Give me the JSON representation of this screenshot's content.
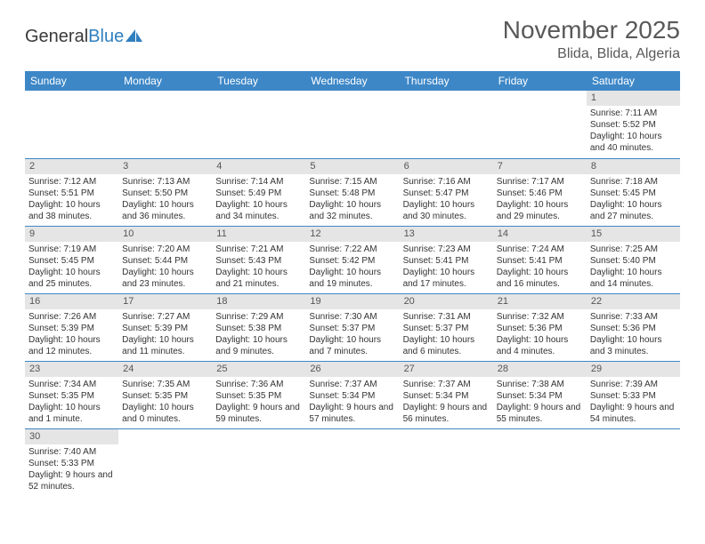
{
  "brand": {
    "part1": "General",
    "part2": "Blue"
  },
  "title": "November 2025",
  "location": "Blida, Blida, Algeria",
  "colors": {
    "header_bg": "#3d87c7",
    "header_fg": "#ffffff",
    "daynum_bg": "#e5e5e5",
    "border": "#3d87c7",
    "title_color": "#595959"
  },
  "weekdays": [
    "Sunday",
    "Monday",
    "Tuesday",
    "Wednesday",
    "Thursday",
    "Friday",
    "Saturday"
  ],
  "weeks": [
    [
      null,
      null,
      null,
      null,
      null,
      null,
      {
        "n": "1",
        "sr": "Sunrise: 7:11 AM",
        "ss": "Sunset: 5:52 PM",
        "dl": "Daylight: 10 hours and 40 minutes."
      }
    ],
    [
      {
        "n": "2",
        "sr": "Sunrise: 7:12 AM",
        "ss": "Sunset: 5:51 PM",
        "dl": "Daylight: 10 hours and 38 minutes."
      },
      {
        "n": "3",
        "sr": "Sunrise: 7:13 AM",
        "ss": "Sunset: 5:50 PM",
        "dl": "Daylight: 10 hours and 36 minutes."
      },
      {
        "n": "4",
        "sr": "Sunrise: 7:14 AM",
        "ss": "Sunset: 5:49 PM",
        "dl": "Daylight: 10 hours and 34 minutes."
      },
      {
        "n": "5",
        "sr": "Sunrise: 7:15 AM",
        "ss": "Sunset: 5:48 PM",
        "dl": "Daylight: 10 hours and 32 minutes."
      },
      {
        "n": "6",
        "sr": "Sunrise: 7:16 AM",
        "ss": "Sunset: 5:47 PM",
        "dl": "Daylight: 10 hours and 30 minutes."
      },
      {
        "n": "7",
        "sr": "Sunrise: 7:17 AM",
        "ss": "Sunset: 5:46 PM",
        "dl": "Daylight: 10 hours and 29 minutes."
      },
      {
        "n": "8",
        "sr": "Sunrise: 7:18 AM",
        "ss": "Sunset: 5:45 PM",
        "dl": "Daylight: 10 hours and 27 minutes."
      }
    ],
    [
      {
        "n": "9",
        "sr": "Sunrise: 7:19 AM",
        "ss": "Sunset: 5:45 PM",
        "dl": "Daylight: 10 hours and 25 minutes."
      },
      {
        "n": "10",
        "sr": "Sunrise: 7:20 AM",
        "ss": "Sunset: 5:44 PM",
        "dl": "Daylight: 10 hours and 23 minutes."
      },
      {
        "n": "11",
        "sr": "Sunrise: 7:21 AM",
        "ss": "Sunset: 5:43 PM",
        "dl": "Daylight: 10 hours and 21 minutes."
      },
      {
        "n": "12",
        "sr": "Sunrise: 7:22 AM",
        "ss": "Sunset: 5:42 PM",
        "dl": "Daylight: 10 hours and 19 minutes."
      },
      {
        "n": "13",
        "sr": "Sunrise: 7:23 AM",
        "ss": "Sunset: 5:41 PM",
        "dl": "Daylight: 10 hours and 17 minutes."
      },
      {
        "n": "14",
        "sr": "Sunrise: 7:24 AM",
        "ss": "Sunset: 5:41 PM",
        "dl": "Daylight: 10 hours and 16 minutes."
      },
      {
        "n": "15",
        "sr": "Sunrise: 7:25 AM",
        "ss": "Sunset: 5:40 PM",
        "dl": "Daylight: 10 hours and 14 minutes."
      }
    ],
    [
      {
        "n": "16",
        "sr": "Sunrise: 7:26 AM",
        "ss": "Sunset: 5:39 PM",
        "dl": "Daylight: 10 hours and 12 minutes."
      },
      {
        "n": "17",
        "sr": "Sunrise: 7:27 AM",
        "ss": "Sunset: 5:39 PM",
        "dl": "Daylight: 10 hours and 11 minutes."
      },
      {
        "n": "18",
        "sr": "Sunrise: 7:29 AM",
        "ss": "Sunset: 5:38 PM",
        "dl": "Daylight: 10 hours and 9 minutes."
      },
      {
        "n": "19",
        "sr": "Sunrise: 7:30 AM",
        "ss": "Sunset: 5:37 PM",
        "dl": "Daylight: 10 hours and 7 minutes."
      },
      {
        "n": "20",
        "sr": "Sunrise: 7:31 AM",
        "ss": "Sunset: 5:37 PM",
        "dl": "Daylight: 10 hours and 6 minutes."
      },
      {
        "n": "21",
        "sr": "Sunrise: 7:32 AM",
        "ss": "Sunset: 5:36 PM",
        "dl": "Daylight: 10 hours and 4 minutes."
      },
      {
        "n": "22",
        "sr": "Sunrise: 7:33 AM",
        "ss": "Sunset: 5:36 PM",
        "dl": "Daylight: 10 hours and 3 minutes."
      }
    ],
    [
      {
        "n": "23",
        "sr": "Sunrise: 7:34 AM",
        "ss": "Sunset: 5:35 PM",
        "dl": "Daylight: 10 hours and 1 minute."
      },
      {
        "n": "24",
        "sr": "Sunrise: 7:35 AM",
        "ss": "Sunset: 5:35 PM",
        "dl": "Daylight: 10 hours and 0 minutes."
      },
      {
        "n": "25",
        "sr": "Sunrise: 7:36 AM",
        "ss": "Sunset: 5:35 PM",
        "dl": "Daylight: 9 hours and 59 minutes."
      },
      {
        "n": "26",
        "sr": "Sunrise: 7:37 AM",
        "ss": "Sunset: 5:34 PM",
        "dl": "Daylight: 9 hours and 57 minutes."
      },
      {
        "n": "27",
        "sr": "Sunrise: 7:37 AM",
        "ss": "Sunset: 5:34 PM",
        "dl": "Daylight: 9 hours and 56 minutes."
      },
      {
        "n": "28",
        "sr": "Sunrise: 7:38 AM",
        "ss": "Sunset: 5:34 PM",
        "dl": "Daylight: 9 hours and 55 minutes."
      },
      {
        "n": "29",
        "sr": "Sunrise: 7:39 AM",
        "ss": "Sunset: 5:33 PM",
        "dl": "Daylight: 9 hours and 54 minutes."
      }
    ],
    [
      {
        "n": "30",
        "sr": "Sunrise: 7:40 AM",
        "ss": "Sunset: 5:33 PM",
        "dl": "Daylight: 9 hours and 52 minutes."
      },
      null,
      null,
      null,
      null,
      null,
      null
    ]
  ]
}
